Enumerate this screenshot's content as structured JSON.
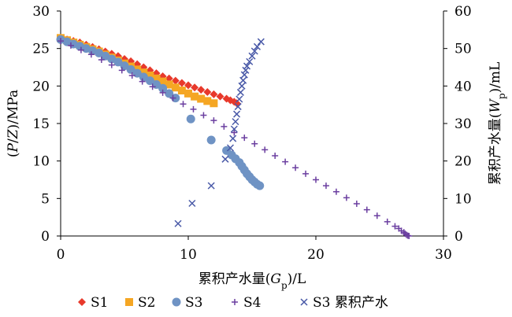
{
  "chart_data": {
    "type": "scatter",
    "title": "",
    "xlabel": "累积产水量(Gp)/L",
    "xlabel_parts": [
      "累积产水量(",
      "G",
      "p",
      ")/L"
    ],
    "ylabel": "(P/Z)/MPa",
    "ylabel_parts": [
      "(",
      "P",
      "/",
      "Z",
      ")/MPa"
    ],
    "y2label": "累积产水量(Wp)/mL",
    "y2label_parts": [
      "累积产水量(",
      "W",
      "p",
      ")/mL"
    ],
    "xlim": [
      0,
      30
    ],
    "ylim": [
      0,
      30
    ],
    "y2lim": [
      0,
      60
    ],
    "xticks": [
      "0",
      "10",
      "20",
      "30"
    ],
    "yticks": [
      "0",
      "5",
      "10",
      "15",
      "20",
      "25",
      "30"
    ],
    "y2ticks": [
      "0",
      "10",
      "20",
      "30",
      "40",
      "50",
      "60"
    ],
    "grid": false,
    "legend_position": "bottom",
    "series": [
      {
        "name": "S1",
        "marker": "diamond",
        "color": "#e8392b",
        "axis": "left",
        "points": [
          [
            0,
            26.4
          ],
          [
            0.5,
            26.2
          ],
          [
            1,
            26.0
          ],
          [
            1.5,
            25.8
          ],
          [
            2,
            25.5
          ],
          [
            2.5,
            25.2
          ],
          [
            3,
            24.9
          ],
          [
            3.5,
            24.6
          ],
          [
            4,
            24.3
          ],
          [
            4.5,
            24.0
          ],
          [
            5,
            23.6
          ],
          [
            5.5,
            23.3
          ],
          [
            6,
            22.9
          ],
          [
            6.5,
            22.5
          ],
          [
            7,
            22.1
          ],
          [
            7.5,
            21.7
          ],
          [
            8,
            21.3
          ],
          [
            8.5,
            21.0
          ],
          [
            9,
            20.7
          ],
          [
            9.5,
            20.4
          ],
          [
            10,
            20.1
          ],
          [
            10.5,
            19.8
          ],
          [
            11,
            19.5
          ],
          [
            11.5,
            19.2
          ],
          [
            12,
            18.9
          ],
          [
            12.5,
            18.6
          ],
          [
            13,
            18.3
          ],
          [
            13.3,
            18.1
          ],
          [
            13.6,
            17.9
          ],
          [
            13.8,
            17.7
          ]
        ]
      },
      {
        "name": "S2",
        "marker": "square",
        "color": "#f5a623",
        "axis": "left",
        "points": [
          [
            0,
            26.4
          ],
          [
            0.5,
            26.1
          ],
          [
            1,
            25.8
          ],
          [
            1.5,
            25.5
          ],
          [
            2,
            25.2
          ],
          [
            2.5,
            24.9
          ],
          [
            3,
            24.6
          ],
          [
            3.5,
            24.2
          ],
          [
            4,
            23.8
          ],
          [
            4.5,
            23.4
          ],
          [
            5,
            23.0
          ],
          [
            5.5,
            22.6
          ],
          [
            6,
            22.2
          ],
          [
            6.5,
            21.8
          ],
          [
            7,
            21.4
          ],
          [
            7.5,
            21.0
          ],
          [
            8,
            20.6
          ],
          [
            8.5,
            20.2
          ],
          [
            9,
            19.8
          ],
          [
            9.5,
            19.4
          ],
          [
            10,
            19.0
          ],
          [
            10.5,
            18.6
          ],
          [
            11,
            18.3
          ],
          [
            11.5,
            18.0
          ],
          [
            12,
            17.7
          ]
        ]
      },
      {
        "name": "S3",
        "marker": "circle",
        "color": "#6f93c4",
        "axis": "left",
        "points": [
          [
            0,
            26.2
          ],
          [
            0.5,
            25.9
          ],
          [
            1,
            25.6
          ],
          [
            1.5,
            25.3
          ],
          [
            2,
            25.0
          ],
          [
            2.5,
            24.7
          ],
          [
            3,
            24.4
          ],
          [
            3.5,
            24.0
          ],
          [
            4,
            23.6
          ],
          [
            4.5,
            23.2
          ],
          [
            5,
            22.7
          ],
          [
            5.5,
            22.2
          ],
          [
            6,
            21.7
          ],
          [
            6.5,
            21.2
          ],
          [
            7,
            20.7
          ],
          [
            7.5,
            20.2
          ],
          [
            8,
            19.7
          ],
          [
            8.5,
            19.0
          ],
          [
            9,
            18.4
          ],
          [
            10.2,
            15.6
          ],
          [
            11.8,
            12.8
          ],
          [
            13.0,
            11.4
          ],
          [
            13.4,
            10.8
          ],
          [
            13.7,
            10.3
          ],
          [
            14.0,
            9.8
          ],
          [
            14.2,
            9.3
          ],
          [
            14.4,
            8.8
          ],
          [
            14.6,
            8.3
          ],
          [
            14.8,
            7.9
          ],
          [
            15.0,
            7.5
          ],
          [
            15.2,
            7.2
          ],
          [
            15.4,
            6.9
          ],
          [
            15.6,
            6.7
          ]
        ]
      },
      {
        "name": "S4",
        "marker": "plus",
        "color": "#6b3fa0",
        "axis": "left",
        "points": [
          [
            0,
            26.0
          ],
          [
            0.8,
            25.4
          ],
          [
            1.6,
            24.8
          ],
          [
            2.4,
            24.2
          ],
          [
            3.2,
            23.5
          ],
          [
            4,
            22.8
          ],
          [
            4.8,
            22.1
          ],
          [
            5.6,
            21.4
          ],
          [
            6.4,
            20.6
          ],
          [
            7.2,
            19.9
          ],
          [
            8,
            19.1
          ],
          [
            8.8,
            18.4
          ],
          [
            9.6,
            17.6
          ],
          [
            10.4,
            16.9
          ],
          [
            11.2,
            16.1
          ],
          [
            12,
            15.4
          ],
          [
            12.8,
            14.6
          ],
          [
            13.6,
            13.8
          ],
          [
            14.4,
            13.1
          ],
          [
            15.2,
            12.3
          ],
          [
            16,
            11.5
          ],
          [
            16.8,
            10.7
          ],
          [
            17.6,
            9.9
          ],
          [
            18.4,
            9.1
          ],
          [
            19.2,
            8.3
          ],
          [
            20,
            7.5
          ],
          [
            20.8,
            6.7
          ],
          [
            21.6,
            5.9
          ],
          [
            22.4,
            5.1
          ],
          [
            23.2,
            4.3
          ],
          [
            24,
            3.5
          ],
          [
            24.8,
            2.7
          ],
          [
            25.6,
            1.9
          ],
          [
            26.2,
            1.3
          ],
          [
            26.5,
            1.0
          ],
          [
            26.7,
            0.7
          ],
          [
            26.9,
            0.5
          ],
          [
            27.0,
            0.3
          ],
          [
            27.1,
            0.15
          ],
          [
            27.2,
            0.05
          ],
          [
            27.3,
            0.0
          ]
        ]
      },
      {
        "name": "S3 累积产水",
        "marker": "x",
        "color": "#4a5aa8",
        "axis": "right",
        "points": [
          [
            9.2,
            3.3
          ],
          [
            10.3,
            8.7
          ],
          [
            11.8,
            13.4
          ],
          [
            12.9,
            20.5
          ],
          [
            13.3,
            23.5
          ],
          [
            13.5,
            26.0
          ],
          [
            13.6,
            28.5
          ],
          [
            13.7,
            30.5
          ],
          [
            13.8,
            32.5
          ],
          [
            13.9,
            34.5
          ],
          [
            14.0,
            36.5
          ],
          [
            14.1,
            38.3
          ],
          [
            14.2,
            40.0
          ],
          [
            14.3,
            41.5
          ],
          [
            14.4,
            43.0
          ],
          [
            14.5,
            44.2
          ],
          [
            14.6,
            45.3
          ],
          [
            14.8,
            46.5
          ],
          [
            15.0,
            48.0
          ],
          [
            15.2,
            49.3
          ],
          [
            15.4,
            50.5
          ],
          [
            15.7,
            51.8
          ]
        ]
      }
    ]
  }
}
